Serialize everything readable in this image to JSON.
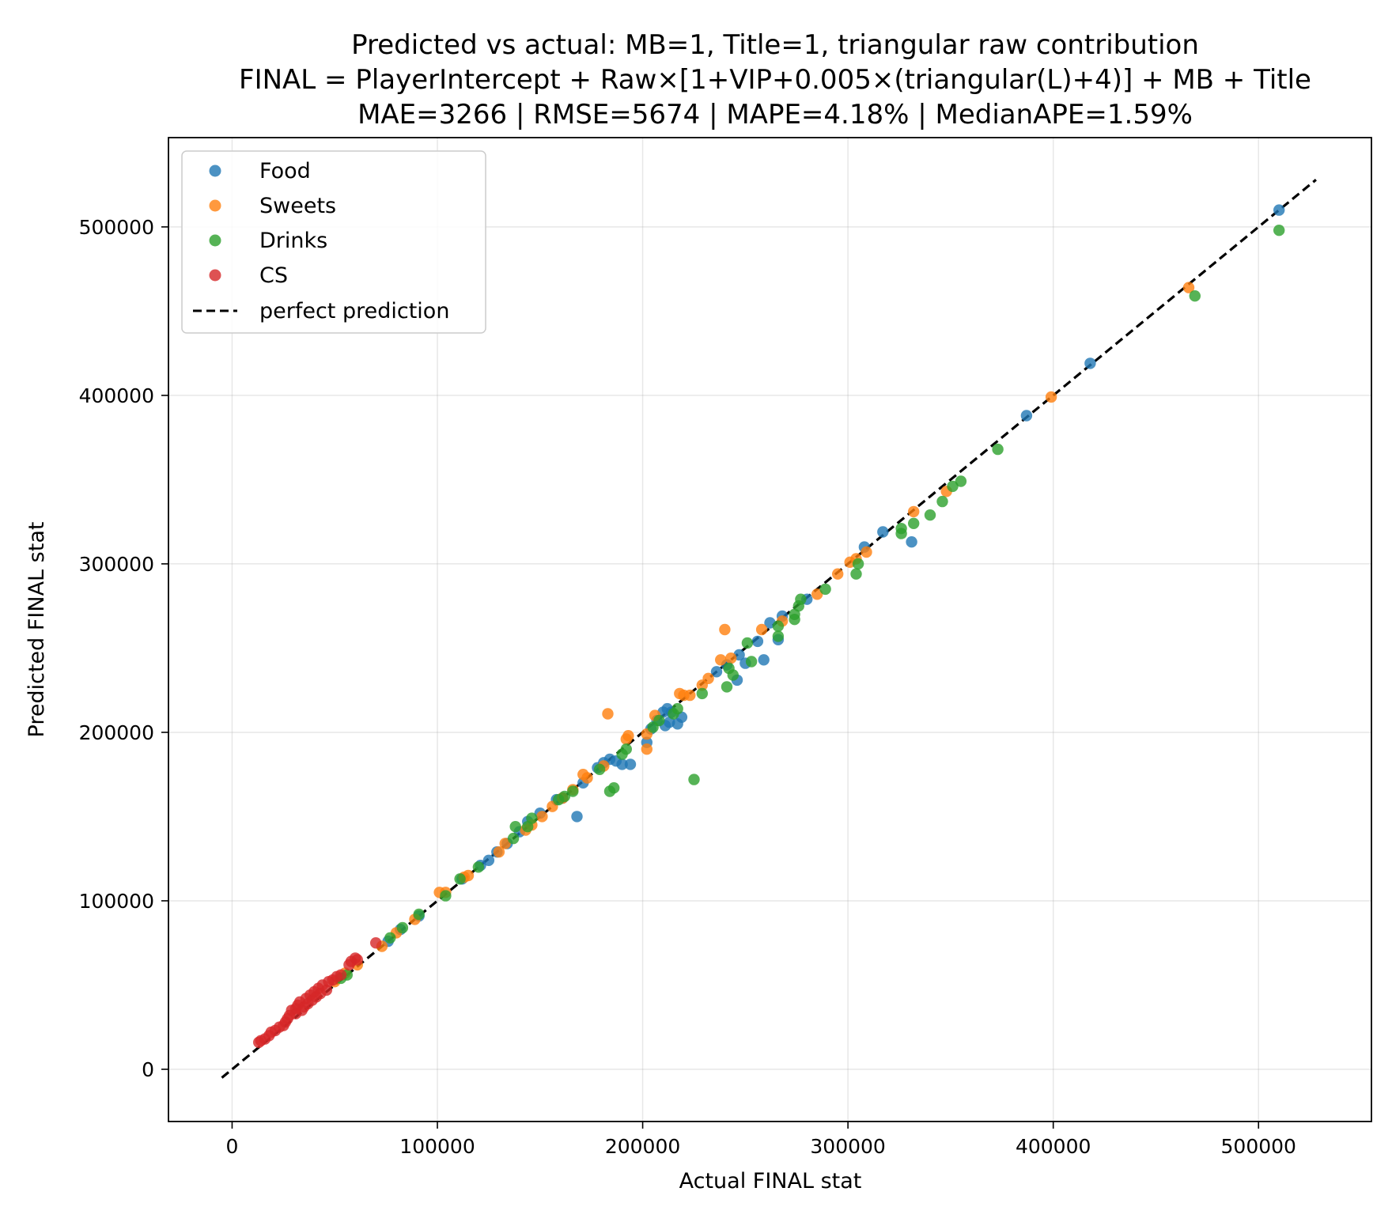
{
  "chart_data": {
    "type": "scatter",
    "title_lines": [
      "Predicted vs actual: MB=1, Title=1, triangular raw contribution",
      "FINAL = PlayerIntercept + Raw×[1+VIP+0.005×(triangular(L)+4)] + MB + Title",
      "MAE=3266 | RMSE=5674 | MAPE=4.18% | MedianAPE=1.59%"
    ],
    "xlabel": "Actual FINAL stat",
    "ylabel": "Predicted FINAL stat",
    "xlim": [
      -31000,
      555000
    ],
    "ylim": [
      -31000,
      553000
    ],
    "xticks": [
      0,
      100000,
      200000,
      300000,
      400000,
      500000
    ],
    "yticks": [
      0,
      100000,
      200000,
      300000,
      400000,
      500000
    ],
    "xtick_labels": [
      "0",
      "100000",
      "200000",
      "300000",
      "400000",
      "500000"
    ],
    "ytick_labels": [
      "0",
      "100000",
      "200000",
      "300000",
      "400000",
      "500000"
    ],
    "grid": true,
    "legend_position": "top-left",
    "reference_line": {
      "name": "perfect prediction",
      "from": -5000,
      "to": 528000,
      "color": "#000000",
      "style": "dashed"
    },
    "series": [
      {
        "name": "Food",
        "color": "#1f77b4",
        "points": [
          [
            510000,
            510000
          ],
          [
            418000,
            419000
          ],
          [
            387000,
            388000
          ],
          [
            331000,
            313000
          ],
          [
            317000,
            319000
          ],
          [
            308000,
            310000
          ],
          [
            280000,
            279000
          ],
          [
            268000,
            269000
          ],
          [
            266000,
            255000
          ],
          [
            262000,
            265000
          ],
          [
            259000,
            243000
          ],
          [
            256000,
            254000
          ],
          [
            250000,
            241000
          ],
          [
            246000,
            231000
          ],
          [
            247000,
            246000
          ],
          [
            241000,
            240000
          ],
          [
            236000,
            236000
          ],
          [
            219000,
            209000
          ],
          [
            217000,
            205000
          ],
          [
            214000,
            212000
          ],
          [
            213000,
            206000
          ],
          [
            212000,
            214000
          ],
          [
            211000,
            204000
          ],
          [
            210000,
            212000
          ],
          [
            207000,
            207000
          ],
          [
            204000,
            202000
          ],
          [
            202000,
            194000
          ],
          [
            194000,
            181000
          ],
          [
            190000,
            181000
          ],
          [
            187000,
            183000
          ],
          [
            184000,
            184000
          ],
          [
            181000,
            182000
          ],
          [
            178000,
            179000
          ],
          [
            171000,
            170000
          ],
          [
            168000,
            150000
          ],
          [
            161000,
            161000
          ],
          [
            158000,
            160000
          ],
          [
            150000,
            152000
          ],
          [
            144000,
            147000
          ],
          [
            140000,
            141000
          ],
          [
            134000,
            134000
          ],
          [
            129000,
            129000
          ],
          [
            125000,
            124000
          ],
          [
            121000,
            121000
          ],
          [
            112000,
            113000
          ],
          [
            91000,
            91000
          ],
          [
            82000,
            83000
          ],
          [
            76000,
            76000
          ]
        ]
      },
      {
        "name": "Sweets",
        "color": "#ff7f0e",
        "points": [
          [
            466000,
            464000
          ],
          [
            399000,
            399000
          ],
          [
            348000,
            343000
          ],
          [
            332000,
            331000
          ],
          [
            309000,
            307000
          ],
          [
            304000,
            303000
          ],
          [
            301000,
            301000
          ],
          [
            295000,
            294000
          ],
          [
            285000,
            282000
          ],
          [
            268000,
            266000
          ],
          [
            258000,
            261000
          ],
          [
            240000,
            261000
          ],
          [
            243000,
            244000
          ],
          [
            238000,
            243000
          ],
          [
            232000,
            232000
          ],
          [
            229000,
            228000
          ],
          [
            223000,
            222000
          ],
          [
            220000,
            222000
          ],
          [
            218000,
            223000
          ],
          [
            206000,
            210000
          ],
          [
            202000,
            199000
          ],
          [
            202000,
            190000
          ],
          [
            193000,
            198000
          ],
          [
            192000,
            196000
          ],
          [
            183000,
            211000
          ],
          [
            181000,
            180000
          ],
          [
            173000,
            173000
          ],
          [
            171000,
            175000
          ],
          [
            166000,
            166000
          ],
          [
            161000,
            161000
          ],
          [
            156000,
            156000
          ],
          [
            151000,
            150000
          ],
          [
            146000,
            145000
          ],
          [
            143000,
            142000
          ],
          [
            133000,
            134000
          ],
          [
            130000,
            129000
          ],
          [
            115000,
            115000
          ],
          [
            113000,
            114000
          ],
          [
            104000,
            105000
          ],
          [
            101000,
            105000
          ],
          [
            89000,
            89000
          ],
          [
            80000,
            81000
          ],
          [
            73000,
            73000
          ],
          [
            61000,
            62000
          ],
          [
            55000,
            57000
          ],
          [
            50000,
            52000
          ]
        ]
      },
      {
        "name": "Drinks",
        "color": "#2ca02c",
        "points": [
          [
            510000,
            498000
          ],
          [
            469000,
            459000
          ],
          [
            373000,
            368000
          ],
          [
            355000,
            349000
          ],
          [
            351000,
            346000
          ],
          [
            346000,
            337000
          ],
          [
            340000,
            329000
          ],
          [
            332000,
            324000
          ],
          [
            326000,
            321000
          ],
          [
            326000,
            318000
          ],
          [
            305000,
            300000
          ],
          [
            304000,
            294000
          ],
          [
            289000,
            285000
          ],
          [
            277000,
            279000
          ],
          [
            276000,
            275000
          ],
          [
            274000,
            267000
          ],
          [
            274000,
            270000
          ],
          [
            266000,
            263000
          ],
          [
            266000,
            257000
          ],
          [
            253000,
            242000
          ],
          [
            251000,
            253000
          ],
          [
            244000,
            234000
          ],
          [
            242000,
            238000
          ],
          [
            241000,
            227000
          ],
          [
            229000,
            223000
          ],
          [
            225000,
            172000
          ],
          [
            217000,
            214000
          ],
          [
            215000,
            211000
          ],
          [
            208000,
            207000
          ],
          [
            205000,
            203000
          ],
          [
            192000,
            190000
          ],
          [
            190000,
            187000
          ],
          [
            186000,
            167000
          ],
          [
            184000,
            165000
          ],
          [
            179000,
            178000
          ],
          [
            166000,
            165000
          ],
          [
            162000,
            162000
          ],
          [
            159000,
            160000
          ],
          [
            146000,
            149000
          ],
          [
            144000,
            144000
          ],
          [
            138000,
            144000
          ],
          [
            137000,
            137000
          ],
          [
            120000,
            120000
          ],
          [
            111000,
            113000
          ],
          [
            104000,
            103000
          ],
          [
            91000,
            92000
          ],
          [
            83000,
            84000
          ],
          [
            77000,
            78000
          ],
          [
            56000,
            56000
          ],
          [
            53000,
            54000
          ]
        ]
      },
      {
        "name": "CS",
        "color": "#d62728",
        "points": [
          [
            13000,
            16000
          ],
          [
            14000,
            17000
          ],
          [
            16000,
            18000
          ],
          [
            18000,
            20000
          ],
          [
            19000,
            22000
          ],
          [
            21000,
            23000
          ],
          [
            23000,
            25000
          ],
          [
            25000,
            26000
          ],
          [
            26000,
            28000
          ],
          [
            27000,
            30000
          ],
          [
            28000,
            32000
          ],
          [
            29000,
            35000
          ],
          [
            31000,
            33000
          ],
          [
            31000,
            36000
          ],
          [
            32000,
            38000
          ],
          [
            33000,
            40000
          ],
          [
            34000,
            35000
          ],
          [
            35000,
            37000
          ],
          [
            36000,
            42000
          ],
          [
            37000,
            39000
          ],
          [
            38000,
            44000
          ],
          [
            39000,
            41000
          ],
          [
            40000,
            46000
          ],
          [
            41000,
            43000
          ],
          [
            42000,
            48000
          ],
          [
            43000,
            45000
          ],
          [
            44000,
            50000
          ],
          [
            46000,
            47000
          ],
          [
            47000,
            52000
          ],
          [
            49000,
            53000
          ],
          [
            51000,
            55000
          ],
          [
            53000,
            56000
          ],
          [
            57000,
            62000
          ],
          [
            58000,
            64000
          ],
          [
            60000,
            66000
          ],
          [
            61000,
            65000
          ],
          [
            70000,
            75000
          ]
        ]
      }
    ]
  }
}
